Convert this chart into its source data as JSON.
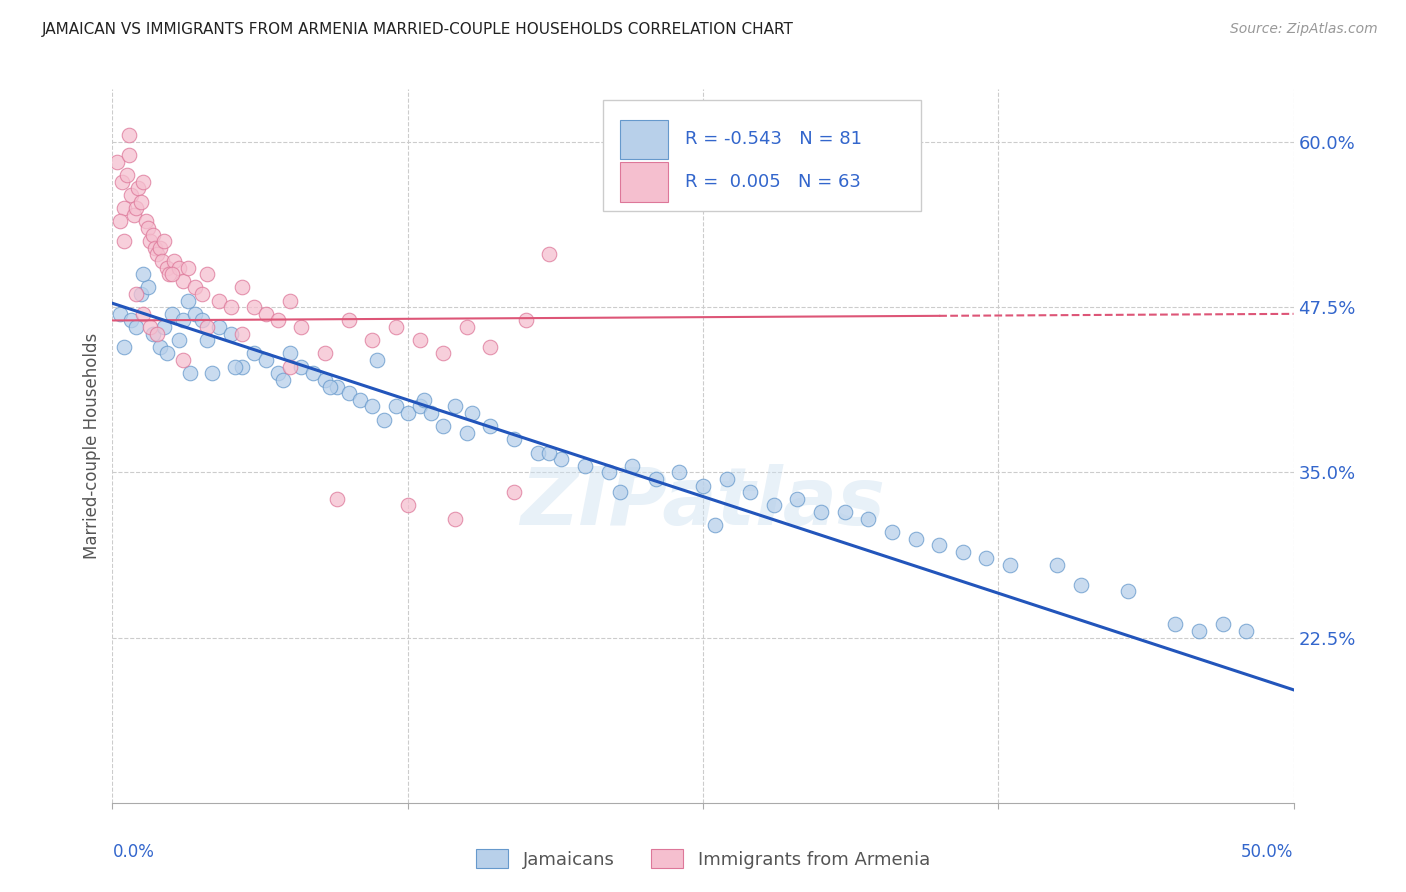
{
  "title": "JAMAICAN VS IMMIGRANTS FROM ARMENIA MARRIED-COUPLE HOUSEHOLDS CORRELATION CHART",
  "source": "Source: ZipAtlas.com",
  "ylabel": "Married-couple Households",
  "yticks": [
    22.5,
    35.0,
    47.5,
    60.0
  ],
  "ytick_labels": [
    "22.5%",
    "35.0%",
    "47.5%",
    "60.0%"
  ],
  "xmin": 0.0,
  "xmax": 50.0,
  "ymin": 10.0,
  "ymax": 64.0,
  "blue_color": "#b8d0ea",
  "pink_color": "#f5bfcf",
  "blue_edge_color": "#6699cc",
  "pink_edge_color": "#dd7799",
  "blue_line_color": "#2255bb",
  "pink_line_color": "#dd5577",
  "grid_color": "#cccccc",
  "legend_text_color": "#3366cc",
  "watermark": "ZIPatlas",
  "R_blue": -0.543,
  "N_blue": 81,
  "R_pink": 0.005,
  "N_pink": 63,
  "blue_intercept": 47.8,
  "blue_slope": -0.585,
  "pink_intercept": 46.5,
  "pink_slope": 0.01,
  "blue_scatter_x": [
    0.3,
    0.5,
    0.8,
    1.0,
    1.2,
    1.5,
    1.7,
    2.0,
    2.2,
    2.5,
    2.8,
    3.0,
    3.2,
    3.5,
    3.8,
    4.0,
    4.2,
    4.5,
    5.0,
    5.5,
    6.0,
    6.5,
    7.0,
    7.5,
    8.0,
    8.5,
    9.0,
    9.5,
    10.0,
    10.5,
    11.0,
    11.5,
    12.0,
    12.5,
    13.0,
    13.5,
    14.0,
    14.5,
    15.0,
    16.0,
    17.0,
    18.0,
    19.0,
    20.0,
    21.0,
    22.0,
    23.0,
    24.0,
    25.0,
    26.0,
    27.0,
    28.0,
    29.0,
    30.0,
    31.0,
    32.0,
    33.0,
    34.0,
    35.0,
    36.0,
    37.0,
    38.0,
    40.0,
    41.0,
    43.0,
    45.0,
    46.0,
    47.0,
    48.0,
    1.3,
    2.3,
    3.3,
    5.2,
    7.2,
    9.2,
    11.2,
    13.2,
    15.2,
    18.5,
    21.5,
    25.5
  ],
  "blue_scatter_y": [
    47.0,
    44.5,
    46.5,
    46.0,
    48.5,
    49.0,
    45.5,
    44.5,
    46.0,
    47.0,
    45.0,
    46.5,
    48.0,
    47.0,
    46.5,
    45.0,
    42.5,
    46.0,
    45.5,
    43.0,
    44.0,
    43.5,
    42.5,
    44.0,
    43.0,
    42.5,
    42.0,
    41.5,
    41.0,
    40.5,
    40.0,
    39.0,
    40.0,
    39.5,
    40.0,
    39.5,
    38.5,
    40.0,
    38.0,
    38.5,
    37.5,
    36.5,
    36.0,
    35.5,
    35.0,
    35.5,
    34.5,
    35.0,
    34.0,
    34.5,
    33.5,
    32.5,
    33.0,
    32.0,
    32.0,
    31.5,
    30.5,
    30.0,
    29.5,
    29.0,
    28.5,
    28.0,
    28.0,
    26.5,
    26.0,
    23.5,
    23.0,
    23.5,
    23.0,
    50.0,
    44.0,
    42.5,
    43.0,
    42.0,
    41.5,
    43.5,
    40.5,
    39.5,
    36.5,
    33.5,
    31.0
  ],
  "pink_scatter_x": [
    0.2,
    0.4,
    0.5,
    0.6,
    0.7,
    0.8,
    0.9,
    1.0,
    1.1,
    1.2,
    1.3,
    1.4,
    1.5,
    1.6,
    1.7,
    1.8,
    1.9,
    2.0,
    2.1,
    2.2,
    2.3,
    2.4,
    2.6,
    2.8,
    3.0,
    3.2,
    3.5,
    3.8,
    4.0,
    4.5,
    5.0,
    5.5,
    6.0,
    6.5,
    7.0,
    7.5,
    8.0,
    9.0,
    10.0,
    11.0,
    12.0,
    13.0,
    14.0,
    15.0,
    16.0,
    17.5,
    0.3,
    0.5,
    0.7,
    1.0,
    1.3,
    1.6,
    1.9,
    2.5,
    3.0,
    4.0,
    5.5,
    7.5,
    9.5,
    12.5,
    14.5,
    17.0,
    18.5
  ],
  "pink_scatter_y": [
    58.5,
    57.0,
    55.0,
    57.5,
    59.0,
    56.0,
    54.5,
    55.0,
    56.5,
    55.5,
    57.0,
    54.0,
    53.5,
    52.5,
    53.0,
    52.0,
    51.5,
    52.0,
    51.0,
    52.5,
    50.5,
    50.0,
    51.0,
    50.5,
    49.5,
    50.5,
    49.0,
    48.5,
    50.0,
    48.0,
    47.5,
    49.0,
    47.5,
    47.0,
    46.5,
    48.0,
    46.0,
    44.0,
    46.5,
    45.0,
    46.0,
    45.0,
    44.0,
    46.0,
    44.5,
    46.5,
    54.0,
    52.5,
    60.5,
    48.5,
    47.0,
    46.0,
    45.5,
    50.0,
    43.5,
    46.0,
    45.5,
    43.0,
    33.0,
    32.5,
    31.5,
    33.5,
    51.5
  ]
}
